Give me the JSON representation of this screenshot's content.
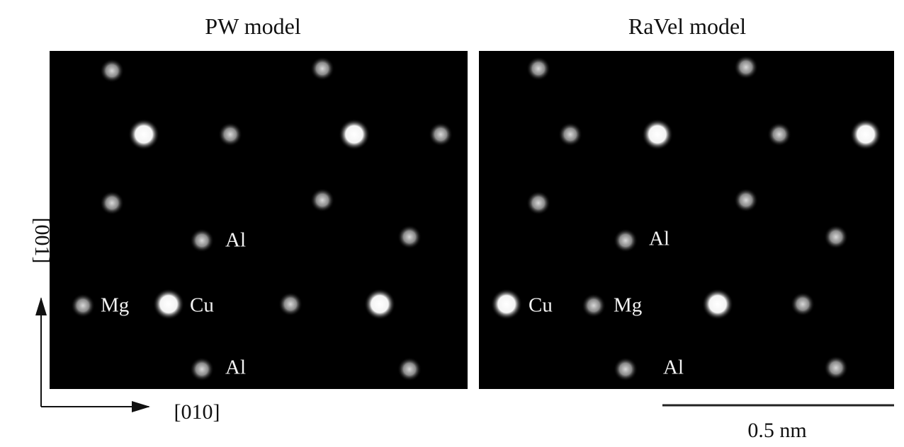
{
  "panels": [
    {
      "title": "PW model",
      "labels": [
        "Al",
        "Mg",
        "Cu",
        "Al"
      ]
    },
    {
      "title": "RaVel model",
      "labels": [
        "Al",
        "Cu",
        "Mg",
        "Al"
      ]
    }
  ],
  "axes": {
    "vertical": "[001]",
    "horizontal": "[010]"
  },
  "scale_bar": "0.5 nm"
}
